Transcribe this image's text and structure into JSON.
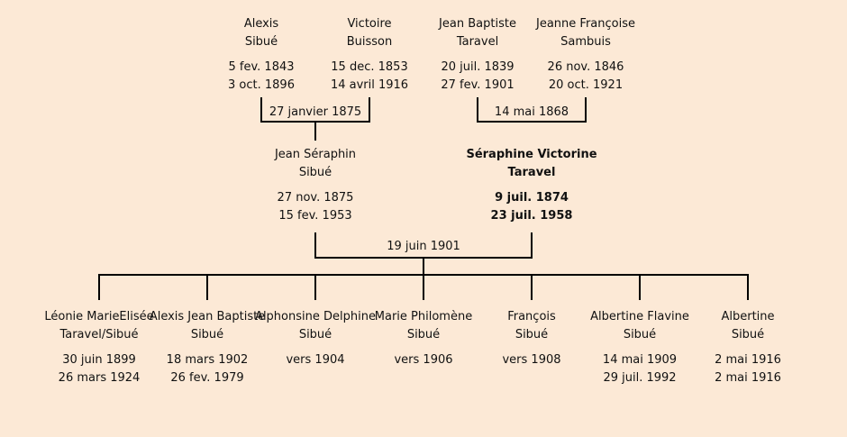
{
  "grandparents": [
    {
      "name": [
        "Alexis",
        "Sibué"
      ],
      "dates": [
        "5 fev. 1843",
        "3 oct. 1896"
      ]
    },
    {
      "name": [
        "Victoire",
        "Buisson"
      ],
      "dates": [
        "15 dec. 1853",
        "14 avril 1916"
      ]
    },
    {
      "name": [
        "Jean Baptiste",
        "Taravel"
      ],
      "dates": [
        "20 juil. 1839",
        "27 fev. 1901"
      ]
    },
    {
      "name": [
        "Jeanne Françoise",
        "Sambuis"
      ],
      "dates": [
        "26 nov. 1846",
        "20 oct. 1921"
      ]
    }
  ],
  "grandparent_marriages": [
    "27 janvier 1875",
    "14 mai 1868"
  ],
  "parents": [
    {
      "name": [
        "Jean Séraphin",
        "Sibué"
      ],
      "dates": [
        "27 nov. 1875",
        "15 fev. 1953"
      ]
    },
    {
      "name": [
        "Séraphine Victorine",
        "Taravel"
      ],
      "dates": [
        "9 juil. 1874",
        "23 juil. 1958"
      ]
    }
  ],
  "parent_marriage": "19 juin 1901",
  "children": [
    {
      "name": [
        "Léonie MarieElisée",
        "Taravel/Sibué"
      ],
      "dates": [
        "30 juin 1899",
        "26 mars 1924"
      ]
    },
    {
      "name": [
        "Alexis Jean Baptiste",
        "Sibué"
      ],
      "dates": [
        "18 mars 1902",
        "26 fev. 1979"
      ]
    },
    {
      "name": [
        "Alphonsine Delphine",
        "Sibué"
      ],
      "dates": [
        "vers 1904"
      ]
    },
    {
      "name": [
        "Marie Philomène",
        "Sibué"
      ],
      "dates": [
        "vers 1906"
      ]
    },
    {
      "name": [
        "François",
        "Sibué"
      ],
      "dates": [
        "vers 1908"
      ]
    },
    {
      "name": [
        "Albertine Flavine",
        "Sibué"
      ],
      "dates": [
        "14 mai 1909",
        "29 juil. 1992"
      ]
    },
    {
      "name": [
        "Albertine",
        "Sibué"
      ],
      "dates": [
        "2 mai 1916",
        "2 mai 1916"
      ]
    }
  ]
}
